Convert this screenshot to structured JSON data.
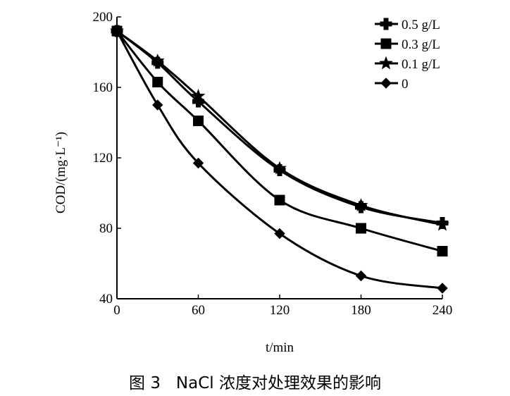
{
  "caption": "图 3   NaCl 浓度对处理效果的影响",
  "chart_data": {
    "type": "line",
    "xlabel": "t/min",
    "ylabel": "COD/(mg·L⁻¹)",
    "x": [
      0,
      30,
      60,
      120,
      180,
      240
    ],
    "xticks": [
      0,
      60,
      120,
      180,
      240
    ],
    "yticks": [
      40,
      80,
      120,
      160,
      200
    ],
    "xlim": [
      0,
      240
    ],
    "ylim": [
      40,
      200
    ],
    "grid": false,
    "legend_position": "top-right",
    "series": [
      {
        "name": "0.5 g/L",
        "marker": "cross",
        "values": [
          192,
          174,
          152,
          113,
          92,
          83
        ]
      },
      {
        "name": "0.3 g/L",
        "marker": "square",
        "values": [
          192,
          163,
          141,
          96,
          80,
          67
        ]
      },
      {
        "name": "0.1 g/L",
        "marker": "star",
        "values": [
          192,
          175,
          155,
          114,
          93,
          82
        ]
      },
      {
        "name": "0",
        "marker": "diamond",
        "values": [
          192,
          150,
          117,
          77,
          53,
          46
        ]
      }
    ]
  }
}
